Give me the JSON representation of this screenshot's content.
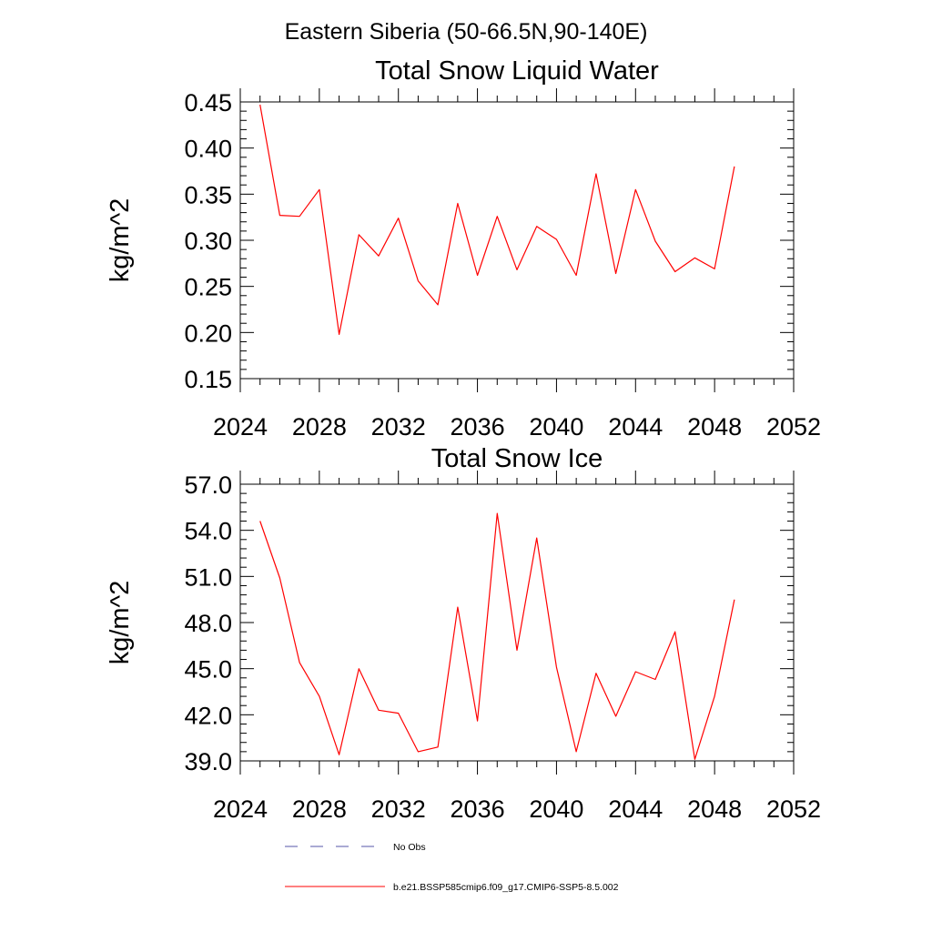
{
  "figure": {
    "title": "Eastern Siberia (50-66.5N,90-140E)"
  },
  "legend": {
    "items": [
      {
        "label": "No Obs",
        "color": "#5555aa",
        "dash": true
      },
      {
        "label": "b.e21.BSSP585cmip6.f09_g17.CMIP6-SSP5-8.5.002",
        "color": "#ff0000",
        "dash": false
      }
    ]
  },
  "chart_data": [
    {
      "type": "line",
      "title": "Total Snow Liquid Water",
      "xlabel": "",
      "ylabel": "kg/m^2",
      "xlim": [
        2024,
        2052
      ],
      "ylim": [
        0.15,
        0.45
      ],
      "xticks": [
        2024,
        2028,
        2032,
        2036,
        2040,
        2044,
        2048,
        2052
      ],
      "xtick_labels": [
        "2024",
        "2028",
        "2032",
        "2036",
        "2040",
        "2044",
        "2048",
        "2052"
      ],
      "yticks": [
        0.15,
        0.2,
        0.25,
        0.3,
        0.35,
        0.4,
        0.45
      ],
      "ytick_labels": [
        "0.15",
        "0.20",
        "0.25",
        "0.30",
        "0.35",
        "0.40",
        "0.45"
      ],
      "grid": false,
      "series": [
        {
          "name": "b.e21.BSSP585cmip6.f09_g17.CMIP6-SSP5-8.5.002",
          "color": "#ff0000",
          "x": [
            2025,
            2026,
            2027,
            2028,
            2029,
            2030,
            2031,
            2032,
            2033,
            2034,
            2035,
            2036,
            2037,
            2038,
            2039,
            2040,
            2041,
            2042,
            2043,
            2044,
            2045,
            2046,
            2047,
            2048,
            2049
          ],
          "y": [
            0.447,
            0.327,
            0.326,
            0.355,
            0.198,
            0.306,
            0.283,
            0.324,
            0.256,
            0.23,
            0.34,
            0.262,
            0.326,
            0.268,
            0.315,
            0.301,
            0.262,
            0.372,
            0.264,
            0.355,
            0.299,
            0.266,
            0.281,
            0.269,
            0.38
          ]
        }
      ]
    },
    {
      "type": "line",
      "title": "Total Snow Ice",
      "xlabel": "",
      "ylabel": "kg/m^2",
      "xlim": [
        2024,
        2052
      ],
      "ylim": [
        39.0,
        57.0
      ],
      "xticks": [
        2024,
        2028,
        2032,
        2036,
        2040,
        2044,
        2048,
        2052
      ],
      "xtick_labels": [
        "2024",
        "2028",
        "2032",
        "2036",
        "2040",
        "2044",
        "2048",
        "2052"
      ],
      "yticks": [
        39.0,
        42.0,
        45.0,
        48.0,
        51.0,
        54.0,
        57.0
      ],
      "ytick_labels": [
        "39.0",
        "42.0",
        "45.0",
        "48.0",
        "51.0",
        "54.0",
        "57.0"
      ],
      "grid": false,
      "series": [
        {
          "name": "b.e21.BSSP585cmip6.f09_g17.CMIP6-SSP5-8.5.002",
          "color": "#ff0000",
          "x": [
            2025,
            2026,
            2027,
            2028,
            2029,
            2030,
            2031,
            2032,
            2033,
            2034,
            2035,
            2036,
            2037,
            2038,
            2039,
            2040,
            2041,
            2042,
            2043,
            2044,
            2045,
            2046,
            2047,
            2048,
            2049
          ],
          "y": [
            54.6,
            50.9,
            45.4,
            43.2,
            39.4,
            45.0,
            42.3,
            42.1,
            39.6,
            39.9,
            49.0,
            41.6,
            55.1,
            46.2,
            53.5,
            45.1,
            39.6,
            44.7,
            41.9,
            44.8,
            44.3,
            47.4,
            39.1,
            43.2,
            49.5
          ]
        }
      ]
    }
  ]
}
